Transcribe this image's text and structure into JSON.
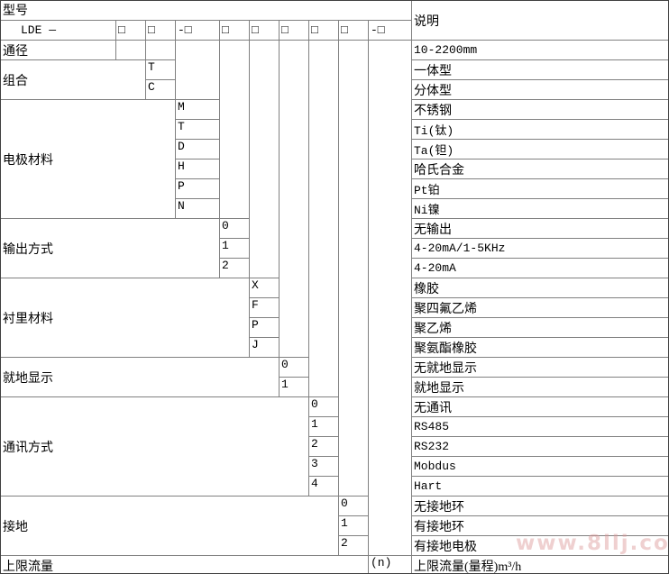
{
  "header": {
    "model_label": "型号",
    "model_prefix": "LDE —",
    "code_slots": [
      "□",
      "□",
      "-□",
      "□",
      "□",
      "□",
      "□",
      "□",
      "-□"
    ],
    "description_label": "说明"
  },
  "sections": [
    {
      "label": "通径",
      "codes": [
        ""
      ],
      "descriptions": [
        "10-2200mm"
      ]
    },
    {
      "label": "组合",
      "codes": [
        "T",
        "C"
      ],
      "descriptions": [
        "一体型",
        "分体型"
      ]
    },
    {
      "label": "电极材料",
      "codes": [
        "M",
        "T",
        "D",
        "H",
        "P",
        "N"
      ],
      "descriptions": [
        "不锈钢",
        "Ti(钛)",
        "Ta(钽)",
        "哈氏合金",
        "Pt铂",
        "Ni镍"
      ]
    },
    {
      "label": "输出方式",
      "codes": [
        "0",
        "1",
        "2"
      ],
      "descriptions": [
        "无输出",
        "4-20mA/1-5KHz",
        "4-20mA"
      ]
    },
    {
      "label": "衬里材料",
      "codes": [
        "X",
        "F",
        "P",
        "J"
      ],
      "descriptions": [
        "橡胶",
        "聚四氟乙烯",
        "聚乙烯",
        "聚氨酯橡胶"
      ]
    },
    {
      "label": "就地显示",
      "codes": [
        "0",
        "1"
      ],
      "descriptions": [
        "无就地显示",
        "就地显示"
      ]
    },
    {
      "label": "通讯方式",
      "codes": [
        "0",
        "1",
        "2",
        "3",
        "4"
      ],
      "descriptions": [
        "无通讯",
        "RS485",
        "RS232",
        "Mobdus",
        "Hart"
      ]
    },
    {
      "label": "接地",
      "codes": [
        "0",
        "1",
        "2"
      ],
      "descriptions": [
        "无接地环",
        "有接地环",
        "有接地电极"
      ]
    },
    {
      "label": "上限流量",
      "codes": [
        "(n)"
      ],
      "descriptions": [
        "上限流量(量程)m³/h"
      ]
    }
  ],
  "watermark": "www.8llj.com"
}
